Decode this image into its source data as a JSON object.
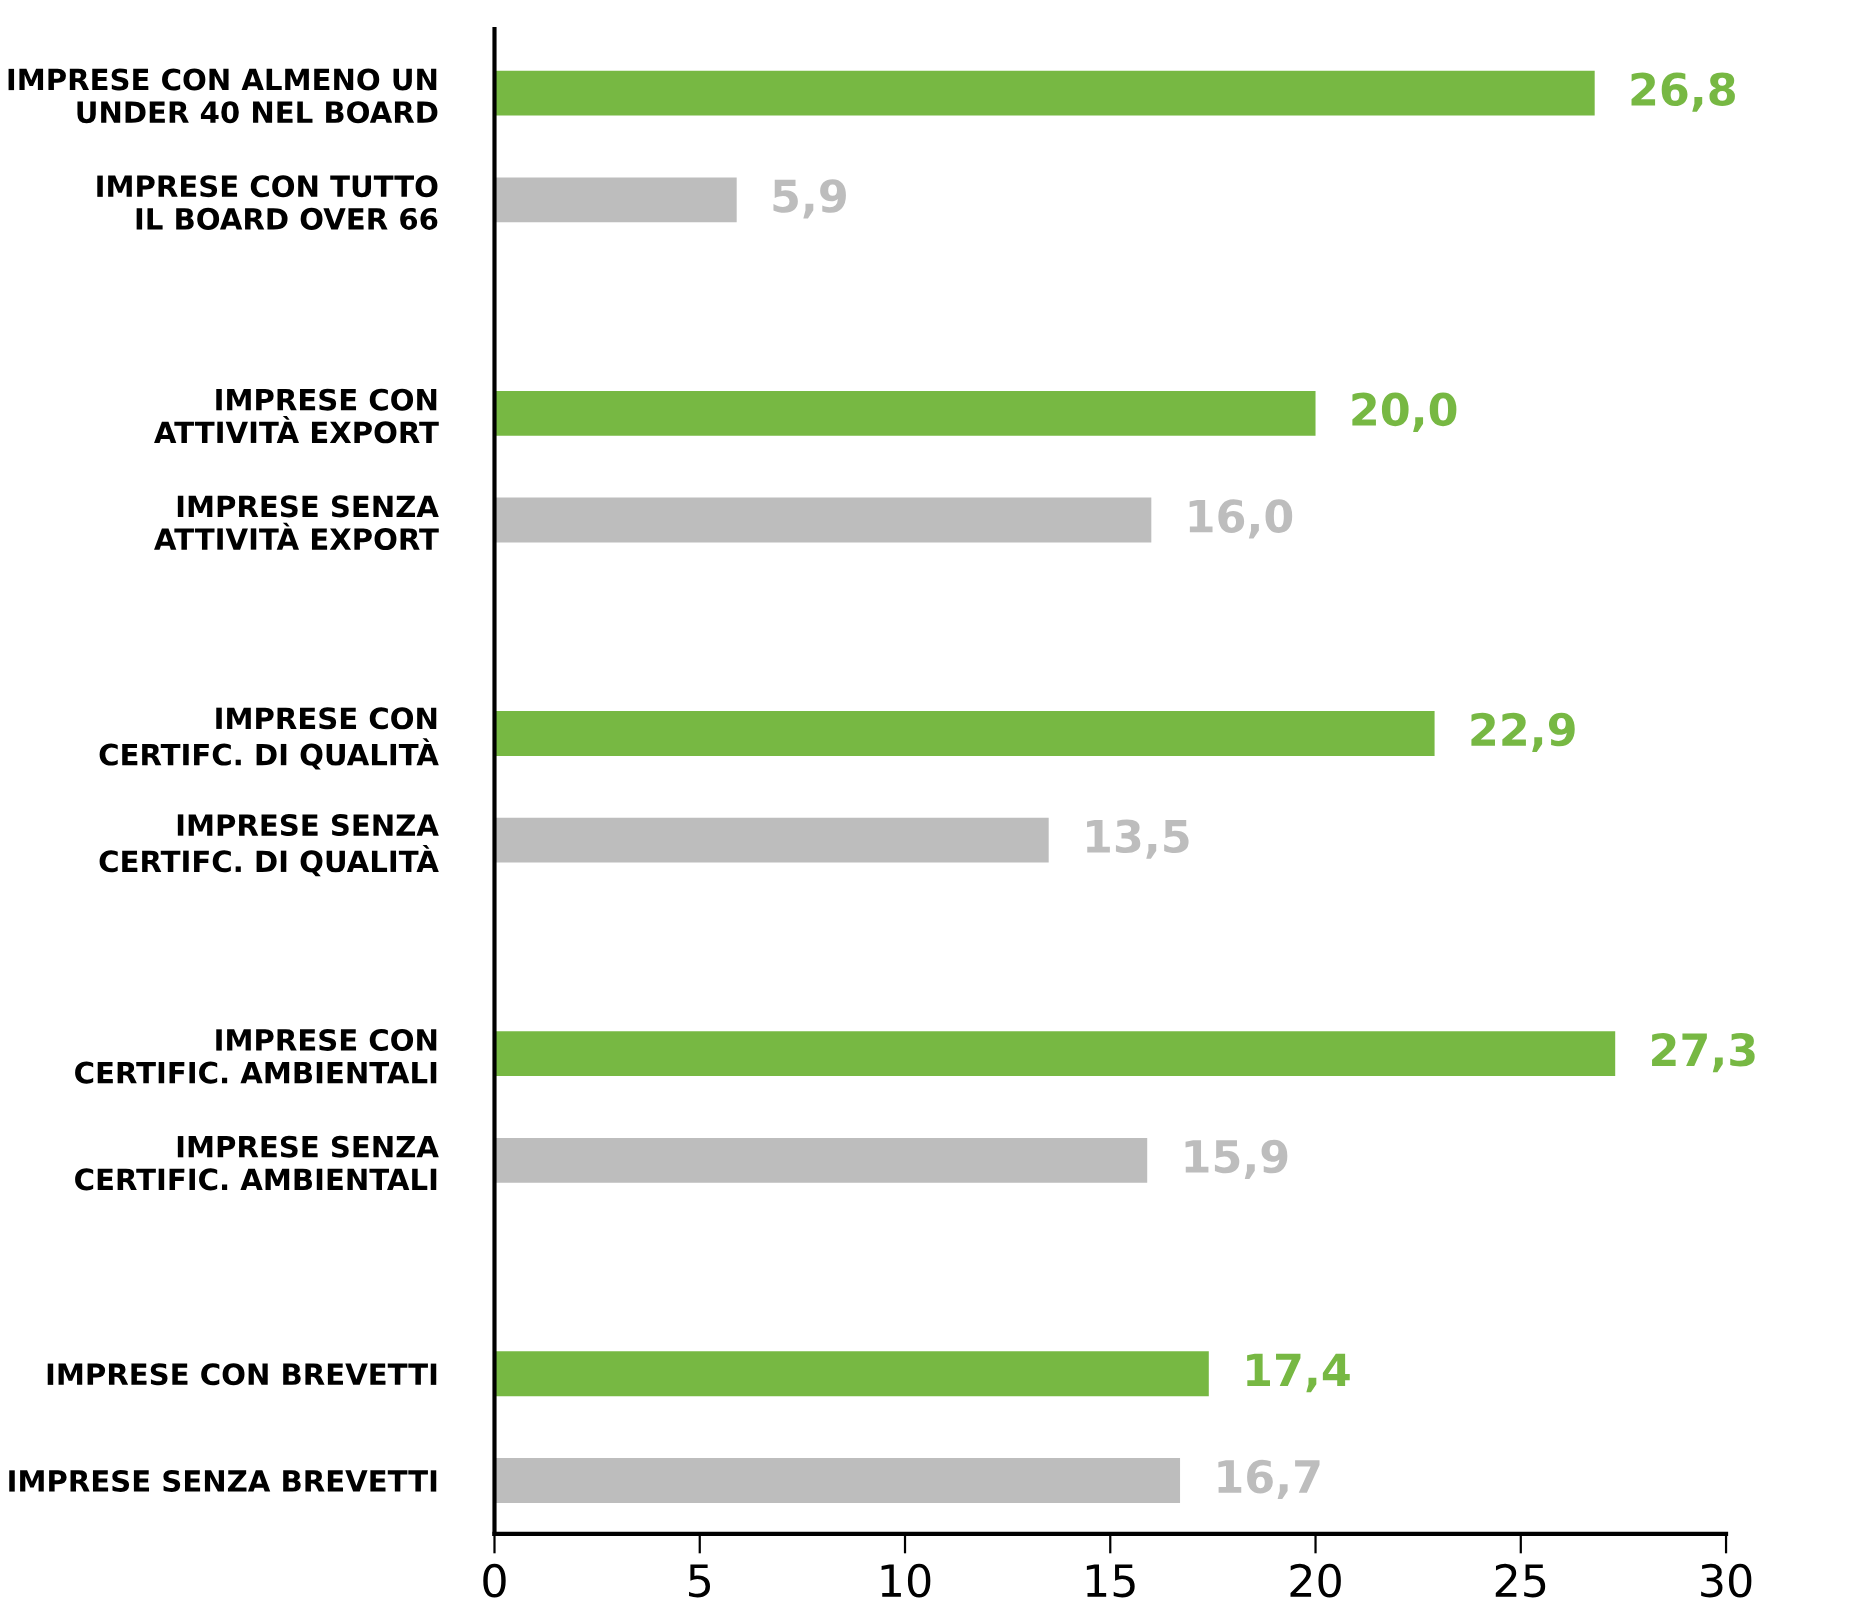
{
  "chart_data": {
    "type": "bar",
    "orientation": "horizontal",
    "categories": [
      "IMPRESE CON ALMENO UN\nUNDER 40 NEL BOARD",
      "IMPRESE CON TUTTO\nIL BOARD OVER 66",
      null,
      "IMPRESE CON\nATTIVITÀ EXPORT",
      "IMPRESE SENZA\nATTIVITÀ EXPORT",
      null,
      "IMPRESE CON\nCERTIFC. DI QUALITÀ",
      "IMPRESE SENZA\nCERTIFC. DI QUALITÀ",
      null,
      "IMPRESE CON\nCERTIFIC. AMBIENTALI",
      "IMPRESE SENZA\nCERTIFIC. AMBIENTALI",
      null,
      "IMPRESE CON BREVETTI",
      "IMPRESE SENZA BREVETTI"
    ],
    "values": [
      26.8,
      5.9,
      null,
      20.0,
      16.0,
      null,
      22.9,
      13.5,
      null,
      27.3,
      15.9,
      null,
      17.4,
      16.7
    ],
    "colors": [
      "#77b843",
      "#bdbdbd",
      null,
      "#77b843",
      "#bdbdbd",
      null,
      "#77b843",
      "#bdbdbd",
      null,
      "#77b843",
      "#bdbdbd",
      null,
      "#77b843",
      "#bdbdbd"
    ],
    "value_labels": [
      "26,8",
      "5,9",
      null,
      "20,0",
      "16,0",
      null,
      "22,9",
      "13,5",
      null,
      "27,3",
      "15,9",
      null,
      "17,4",
      "16,7"
    ],
    "xlim": [
      0,
      30
    ],
    "xticks": [
      0,
      5,
      10,
      15,
      20,
      25,
      30
    ],
    "grid": false
  }
}
